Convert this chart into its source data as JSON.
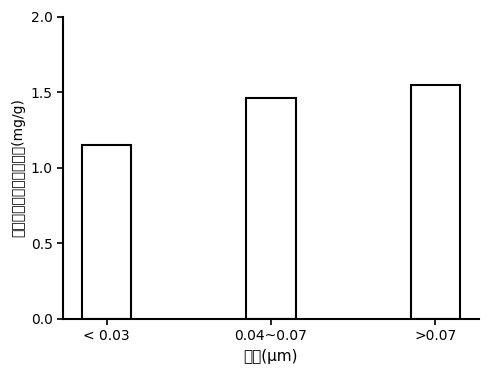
{
  "categories": [
    "< 0.03",
    "0.04~0.07",
    ">0.07"
  ],
  "values": [
    1.15,
    1.46,
    1.55
  ],
  "bar_color": "#ffffff",
  "bar_edgecolor": "#000000",
  "bar_linewidth": 1.5,
  "bar_width": 0.3,
  "xlabel": "粒径(μm)",
  "ylabel": "单位粒相物丁香酟释放量(mg/g)",
  "ylim": [
    0.0,
    2.0
  ],
  "yticks": [
    0.0,
    0.5,
    1.0,
    1.5,
    2.0
  ],
  "background_color": "#ffffff",
  "xlabel_fontsize": 11,
  "ylabel_fontsize": 10,
  "tick_fontsize": 10,
  "spine_linewidth": 1.5
}
